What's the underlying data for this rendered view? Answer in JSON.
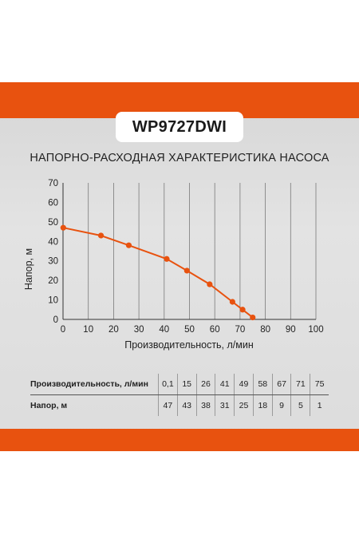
{
  "model": "WP9727DWI",
  "chart_data": {
    "type": "line",
    "title": "НАПОРНО-РАСХОДНАЯ ХАРАКТЕРИСТИКА НАСОСА",
    "xlabel": "Производительность, л/мин",
    "ylabel": "Напор, м",
    "xlim": [
      0,
      100
    ],
    "ylim": [
      0,
      70
    ],
    "xticks": [
      "0",
      "10",
      "20",
      "30",
      "40",
      "50",
      "60",
      "70",
      "80",
      "90",
      "100"
    ],
    "yticks": [
      "0",
      "10",
      "20",
      "30",
      "40",
      "50",
      "60",
      "70"
    ],
    "grid": "vertical",
    "series_color": "#e8520f",
    "x": [
      0.1,
      15,
      26,
      41,
      49,
      58,
      67,
      71,
      75
    ],
    "y": [
      47,
      43,
      38,
      31,
      25,
      18,
      9,
      5,
      1
    ]
  },
  "table": {
    "row1_label": "Производительность, л/мин",
    "row2_label": "Напор, м",
    "flow": [
      "0,1",
      "15",
      "26",
      "41",
      "49",
      "58",
      "67",
      "71",
      "75"
    ],
    "head": [
      "47",
      "43",
      "38",
      "31",
      "25",
      "18",
      "9",
      "5",
      "1"
    ]
  }
}
